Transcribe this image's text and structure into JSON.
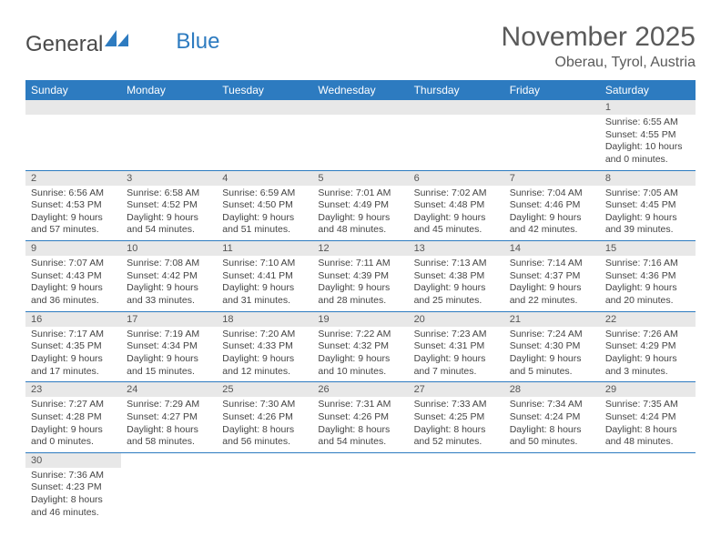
{
  "logo": {
    "part1": "General",
    "part2": "Blue"
  },
  "title": "November 2025",
  "location": "Oberau, Tyrol, Austria",
  "colors": {
    "header_bg": "#2d7bc0",
    "header_text": "#ffffff",
    "daynum_bg": "#e8e8e8",
    "border": "#2d7bc0",
    "text": "#444444"
  },
  "weekdays": [
    "Sunday",
    "Monday",
    "Tuesday",
    "Wednesday",
    "Thursday",
    "Friday",
    "Saturday"
  ],
  "days": {
    "1": {
      "sunrise": "6:55 AM",
      "sunset": "4:55 PM",
      "daylight_h": 10,
      "daylight_m": 0
    },
    "2": {
      "sunrise": "6:56 AM",
      "sunset": "4:53 PM",
      "daylight_h": 9,
      "daylight_m": 57
    },
    "3": {
      "sunrise": "6:58 AM",
      "sunset": "4:52 PM",
      "daylight_h": 9,
      "daylight_m": 54
    },
    "4": {
      "sunrise": "6:59 AM",
      "sunset": "4:50 PM",
      "daylight_h": 9,
      "daylight_m": 51
    },
    "5": {
      "sunrise": "7:01 AM",
      "sunset": "4:49 PM",
      "daylight_h": 9,
      "daylight_m": 48
    },
    "6": {
      "sunrise": "7:02 AM",
      "sunset": "4:48 PM",
      "daylight_h": 9,
      "daylight_m": 45
    },
    "7": {
      "sunrise": "7:04 AM",
      "sunset": "4:46 PM",
      "daylight_h": 9,
      "daylight_m": 42
    },
    "8": {
      "sunrise": "7:05 AM",
      "sunset": "4:45 PM",
      "daylight_h": 9,
      "daylight_m": 39
    },
    "9": {
      "sunrise": "7:07 AM",
      "sunset": "4:43 PM",
      "daylight_h": 9,
      "daylight_m": 36
    },
    "10": {
      "sunrise": "7:08 AM",
      "sunset": "4:42 PM",
      "daylight_h": 9,
      "daylight_m": 33
    },
    "11": {
      "sunrise": "7:10 AM",
      "sunset": "4:41 PM",
      "daylight_h": 9,
      "daylight_m": 31
    },
    "12": {
      "sunrise": "7:11 AM",
      "sunset": "4:39 PM",
      "daylight_h": 9,
      "daylight_m": 28
    },
    "13": {
      "sunrise": "7:13 AM",
      "sunset": "4:38 PM",
      "daylight_h": 9,
      "daylight_m": 25
    },
    "14": {
      "sunrise": "7:14 AM",
      "sunset": "4:37 PM",
      "daylight_h": 9,
      "daylight_m": 22
    },
    "15": {
      "sunrise": "7:16 AM",
      "sunset": "4:36 PM",
      "daylight_h": 9,
      "daylight_m": 20
    },
    "16": {
      "sunrise": "7:17 AM",
      "sunset": "4:35 PM",
      "daylight_h": 9,
      "daylight_m": 17
    },
    "17": {
      "sunrise": "7:19 AM",
      "sunset": "4:34 PM",
      "daylight_h": 9,
      "daylight_m": 15
    },
    "18": {
      "sunrise": "7:20 AM",
      "sunset": "4:33 PM",
      "daylight_h": 9,
      "daylight_m": 12
    },
    "19": {
      "sunrise": "7:22 AM",
      "sunset": "4:32 PM",
      "daylight_h": 9,
      "daylight_m": 10
    },
    "20": {
      "sunrise": "7:23 AM",
      "sunset": "4:31 PM",
      "daylight_h": 9,
      "daylight_m": 7
    },
    "21": {
      "sunrise": "7:24 AM",
      "sunset": "4:30 PM",
      "daylight_h": 9,
      "daylight_m": 5
    },
    "22": {
      "sunrise": "7:26 AM",
      "sunset": "4:29 PM",
      "daylight_h": 9,
      "daylight_m": 3
    },
    "23": {
      "sunrise": "7:27 AM",
      "sunset": "4:28 PM",
      "daylight_h": 9,
      "daylight_m": 0
    },
    "24": {
      "sunrise": "7:29 AM",
      "sunset": "4:27 PM",
      "daylight_h": 8,
      "daylight_m": 58
    },
    "25": {
      "sunrise": "7:30 AM",
      "sunset": "4:26 PM",
      "daylight_h": 8,
      "daylight_m": 56
    },
    "26": {
      "sunrise": "7:31 AM",
      "sunset": "4:26 PM",
      "daylight_h": 8,
      "daylight_m": 54
    },
    "27": {
      "sunrise": "7:33 AM",
      "sunset": "4:25 PM",
      "daylight_h": 8,
      "daylight_m": 52
    },
    "28": {
      "sunrise": "7:34 AM",
      "sunset": "4:24 PM",
      "daylight_h": 8,
      "daylight_m": 50
    },
    "29": {
      "sunrise": "7:35 AM",
      "sunset": "4:24 PM",
      "daylight_h": 8,
      "daylight_m": 48
    },
    "30": {
      "sunrise": "7:36 AM",
      "sunset": "4:23 PM",
      "daylight_h": 8,
      "daylight_m": 46
    }
  },
  "labels": {
    "sunrise": "Sunrise:",
    "sunset": "Sunset:",
    "daylight_prefix": "Daylight:",
    "hours_word": "hours",
    "and_word": "and",
    "minutes_word": "minutes."
  },
  "grid": [
    [
      null,
      null,
      null,
      null,
      null,
      null,
      "1"
    ],
    [
      "2",
      "3",
      "4",
      "5",
      "6",
      "7",
      "8"
    ],
    [
      "9",
      "10",
      "11",
      "12",
      "13",
      "14",
      "15"
    ],
    [
      "16",
      "17",
      "18",
      "19",
      "20",
      "21",
      "22"
    ],
    [
      "23",
      "24",
      "25",
      "26",
      "27",
      "28",
      "29"
    ],
    [
      "30",
      null,
      null,
      null,
      null,
      null,
      null
    ]
  ]
}
